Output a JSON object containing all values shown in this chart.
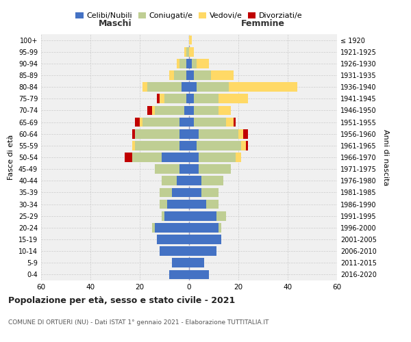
{
  "age_groups": [
    "0-4",
    "5-9",
    "10-14",
    "15-19",
    "20-24",
    "25-29",
    "30-34",
    "35-39",
    "40-44",
    "45-49",
    "50-54",
    "55-59",
    "60-64",
    "65-69",
    "70-74",
    "75-79",
    "80-84",
    "85-89",
    "90-94",
    "95-99",
    "100+"
  ],
  "birth_years": [
    "2016-2020",
    "2011-2015",
    "2006-2010",
    "2001-2005",
    "1996-2000",
    "1991-1995",
    "1986-1990",
    "1981-1985",
    "1976-1980",
    "1971-1975",
    "1966-1970",
    "1961-1965",
    "1956-1960",
    "1951-1955",
    "1946-1950",
    "1941-1945",
    "1936-1940",
    "1931-1935",
    "1926-1930",
    "1921-1925",
    "≤ 1920"
  ],
  "male": {
    "celibi": [
      8,
      7,
      12,
      13,
      14,
      10,
      9,
      7,
      5,
      4,
      11,
      4,
      4,
      4,
      2,
      1,
      3,
      1,
      1,
      0,
      0
    ],
    "coniugati": [
      0,
      0,
      0,
      0,
      1,
      1,
      3,
      5,
      6,
      10,
      12,
      18,
      18,
      15,
      12,
      9,
      14,
      5,
      3,
      1,
      0
    ],
    "vedovi": [
      0,
      0,
      0,
      0,
      0,
      0,
      0,
      0,
      0,
      0,
      0,
      1,
      0,
      1,
      1,
      2,
      2,
      2,
      1,
      1,
      0
    ],
    "divorziati": [
      0,
      0,
      0,
      0,
      0,
      0,
      0,
      0,
      0,
      0,
      3,
      0,
      1,
      2,
      2,
      1,
      0,
      0,
      0,
      0,
      0
    ]
  },
  "female": {
    "nubili": [
      8,
      6,
      11,
      13,
      12,
      11,
      7,
      5,
      5,
      4,
      4,
      3,
      4,
      2,
      2,
      2,
      3,
      2,
      1,
      0,
      0
    ],
    "coniugate": [
      0,
      0,
      0,
      0,
      1,
      4,
      5,
      7,
      9,
      13,
      15,
      18,
      16,
      13,
      10,
      10,
      13,
      7,
      2,
      0,
      0
    ],
    "vedove": [
      0,
      0,
      0,
      0,
      0,
      0,
      0,
      0,
      0,
      0,
      2,
      2,
      2,
      3,
      5,
      12,
      28,
      9,
      5,
      2,
      1
    ],
    "divorziate": [
      0,
      0,
      0,
      0,
      0,
      0,
      0,
      0,
      0,
      0,
      0,
      1,
      2,
      1,
      0,
      0,
      0,
      0,
      0,
      0,
      0
    ]
  },
  "colors": {
    "celibi_nubili": "#4472C4",
    "coniugati": "#BFCE93",
    "vedovi": "#FFD966",
    "divorziati": "#C00000"
  },
  "xlim": 60,
  "title": "Popolazione per età, sesso e stato civile - 2021",
  "subtitle": "COMUNE DI ORTUERI (NU) - Dati ISTAT 1° gennaio 2021 - Elaborazione TUTTITALIA.IT",
  "ylabel_left": "Fasce di età",
  "ylabel_right": "Anni di nascita",
  "xlabel_left": "Maschi",
  "xlabel_right": "Femmine",
  "bg_color": "#f0f0f0",
  "grid_color": "#cccccc"
}
